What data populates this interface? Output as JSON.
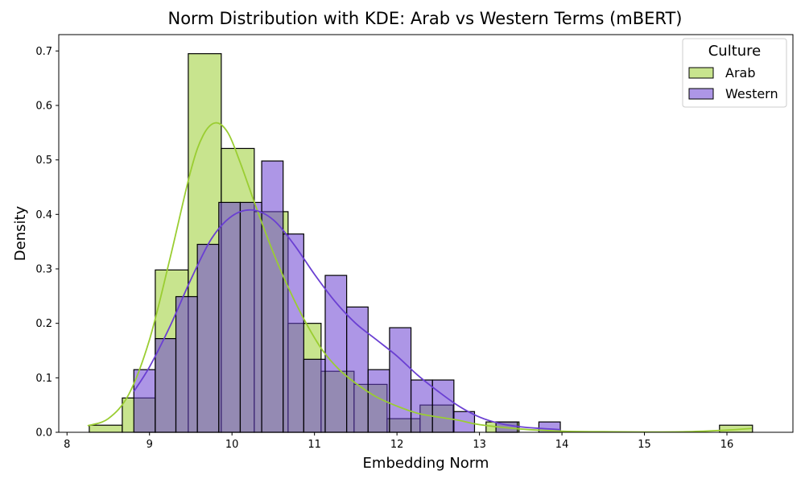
{
  "chart_data": {
    "type": "histogram",
    "title": "Norm Distribution with KDE: Arab vs Western Terms (mBERT)",
    "xlabel": "Embedding Norm",
    "ylabel": "Density",
    "xlim": [
      7.9,
      16.8
    ],
    "ylim": [
      0,
      0.73
    ],
    "xticks": [
      8,
      9,
      10,
      11,
      12,
      13,
      14,
      15,
      16
    ],
    "yticks": [
      0.0,
      0.1,
      0.2,
      0.3,
      0.4,
      0.5,
      0.6,
      0.7
    ],
    "xtick_labels": [
      "8",
      "9",
      "10",
      "11",
      "12",
      "13",
      "14",
      "15",
      "16"
    ],
    "ytick_labels": [
      "0.0",
      "0.1",
      "0.2",
      "0.3",
      "0.4",
      "0.5",
      "0.6",
      "0.7"
    ],
    "grid": false,
    "legend": {
      "title": "Culture",
      "position": "top-right"
    },
    "series": [
      {
        "name": "Arab",
        "color": "#9acd32",
        "bins": [
          {
            "x0": 8.27,
            "x1": 8.67,
            "density": 0.013
          },
          {
            "x0": 8.67,
            "x1": 9.07,
            "density": 0.063
          },
          {
            "x0": 9.07,
            "x1": 9.47,
            "density": 0.298
          },
          {
            "x0": 9.47,
            "x1": 9.87,
            "density": 0.695
          },
          {
            "x0": 9.87,
            "x1": 10.27,
            "density": 0.521
          },
          {
            "x0": 10.27,
            "x1": 10.68,
            "density": 0.405
          },
          {
            "x0": 10.68,
            "x1": 11.08,
            "density": 0.2
          },
          {
            "x0": 11.08,
            "x1": 11.48,
            "density": 0.112
          },
          {
            "x0": 11.48,
            "x1": 11.88,
            "density": 0.088
          },
          {
            "x0": 11.88,
            "x1": 12.28,
            "density": 0.025
          },
          {
            "x0": 12.28,
            "x1": 12.68,
            "density": 0.05
          },
          {
            "x0": 12.68,
            "x1": 13.08,
            "density": 0.0
          },
          {
            "x0": 13.08,
            "x1": 13.48,
            "density": 0.019
          },
          {
            "x0": 15.91,
            "x1": 16.31,
            "density": 0.013
          }
        ],
        "kde": {
          "x": [
            8.25,
            8.5,
            8.75,
            9.0,
            9.25,
            9.5,
            9.65,
            9.8,
            9.95,
            10.1,
            10.3,
            10.5,
            10.7,
            10.9,
            11.1,
            11.3,
            11.5,
            11.75,
            12.0,
            12.25,
            12.5,
            12.75,
            13.0,
            13.5,
            14.0,
            14.5,
            15.0,
            15.5,
            16.0,
            16.3
          ],
          "y": [
            0.012,
            0.025,
            0.07,
            0.17,
            0.32,
            0.48,
            0.545,
            0.568,
            0.55,
            0.495,
            0.41,
            0.33,
            0.26,
            0.2,
            0.15,
            0.115,
            0.09,
            0.065,
            0.048,
            0.035,
            0.028,
            0.022,
            0.014,
            0.006,
            0.002,
            0.001,
            0.0005,
            0.001,
            0.004,
            0.007
          ]
        }
      },
      {
        "name": "Western",
        "color": "#6a3fd2",
        "bins": [
          {
            "x0": 8.81,
            "x1": 9.07,
            "density": 0.115
          },
          {
            "x0": 9.07,
            "x1": 9.32,
            "density": 0.172
          },
          {
            "x0": 9.32,
            "x1": 9.58,
            "density": 0.249
          },
          {
            "x0": 9.58,
            "x1": 9.84,
            "density": 0.345
          },
          {
            "x0": 9.84,
            "x1": 10.1,
            "density": 0.422
          },
          {
            "x0": 10.1,
            "x1": 10.36,
            "density": 0.422
          },
          {
            "x0": 10.36,
            "x1": 10.62,
            "density": 0.498
          },
          {
            "x0": 10.62,
            "x1": 10.87,
            "density": 0.364
          },
          {
            "x0": 10.87,
            "x1": 11.13,
            "density": 0.134
          },
          {
            "x0": 11.13,
            "x1": 11.39,
            "density": 0.288
          },
          {
            "x0": 11.39,
            "x1": 11.65,
            "density": 0.23
          },
          {
            "x0": 11.65,
            "x1": 11.91,
            "density": 0.115
          },
          {
            "x0": 11.91,
            "x1": 12.17,
            "density": 0.192
          },
          {
            "x0": 12.17,
            "x1": 12.43,
            "density": 0.096
          },
          {
            "x0": 12.43,
            "x1": 12.69,
            "density": 0.096
          },
          {
            "x0": 12.69,
            "x1": 12.94,
            "density": 0.038
          },
          {
            "x0": 12.94,
            "x1": 13.2,
            "density": 0.0
          },
          {
            "x0": 13.2,
            "x1": 13.46,
            "density": 0.019
          },
          {
            "x0": 13.46,
            "x1": 13.72,
            "density": 0.0
          },
          {
            "x0": 13.72,
            "x1": 13.98,
            "density": 0.019
          }
        ],
        "kde": {
          "x": [
            8.81,
            9.0,
            9.25,
            9.5,
            9.75,
            10.0,
            10.25,
            10.5,
            10.75,
            11.0,
            11.25,
            11.5,
            11.75,
            12.0,
            12.25,
            12.5,
            12.75,
            13.0,
            13.25,
            13.5,
            13.75,
            13.98
          ],
          "y": [
            0.075,
            0.12,
            0.195,
            0.28,
            0.355,
            0.397,
            0.408,
            0.39,
            0.345,
            0.29,
            0.24,
            0.2,
            0.17,
            0.14,
            0.105,
            0.075,
            0.048,
            0.028,
            0.016,
            0.01,
            0.007,
            0.005
          ]
        }
      }
    ]
  }
}
